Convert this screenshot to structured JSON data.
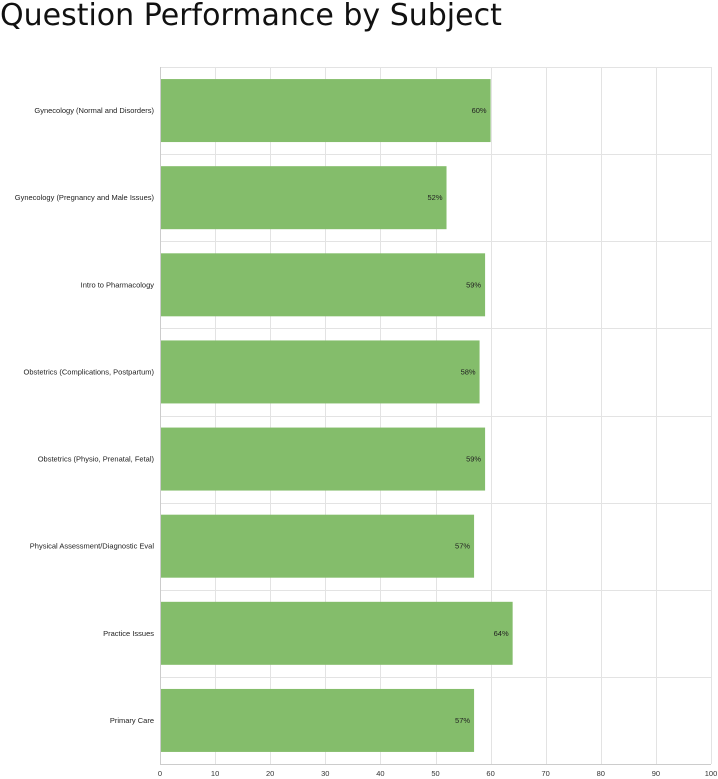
{
  "chart_data": {
    "type": "bar",
    "orientation": "horizontal",
    "title": "Question Performance by Subject",
    "xlabel": "",
    "ylabel": "",
    "categories": [
      "Gynecology (Normal and Disorders)",
      "Gynecology (Pregnancy and Male Issues)",
      "Intro to Pharmacology",
      "Obstetrics (Complications, Postpartum)",
      "Obstetrics (Physio, Prenatal, Fetal)",
      "Physical Assessment/Diagnostic Eval",
      "Practice Issues",
      "Primary Care"
    ],
    "values": [
      60,
      52,
      59,
      58,
      59,
      57,
      64,
      57
    ],
    "data_labels": [
      "60%",
      "52%",
      "59%",
      "58%",
      "59%",
      "57%",
      "64%",
      "57%"
    ],
    "xlim": [
      0,
      100
    ],
    "xticks": [
      0,
      10,
      20,
      30,
      40,
      50,
      60,
      70,
      80,
      90,
      100
    ],
    "grid": true,
    "legend": "none",
    "colors": {
      "bar": "#84bd6b",
      "grid": "#e3e3e3",
      "axis": "#cccccc"
    }
  }
}
